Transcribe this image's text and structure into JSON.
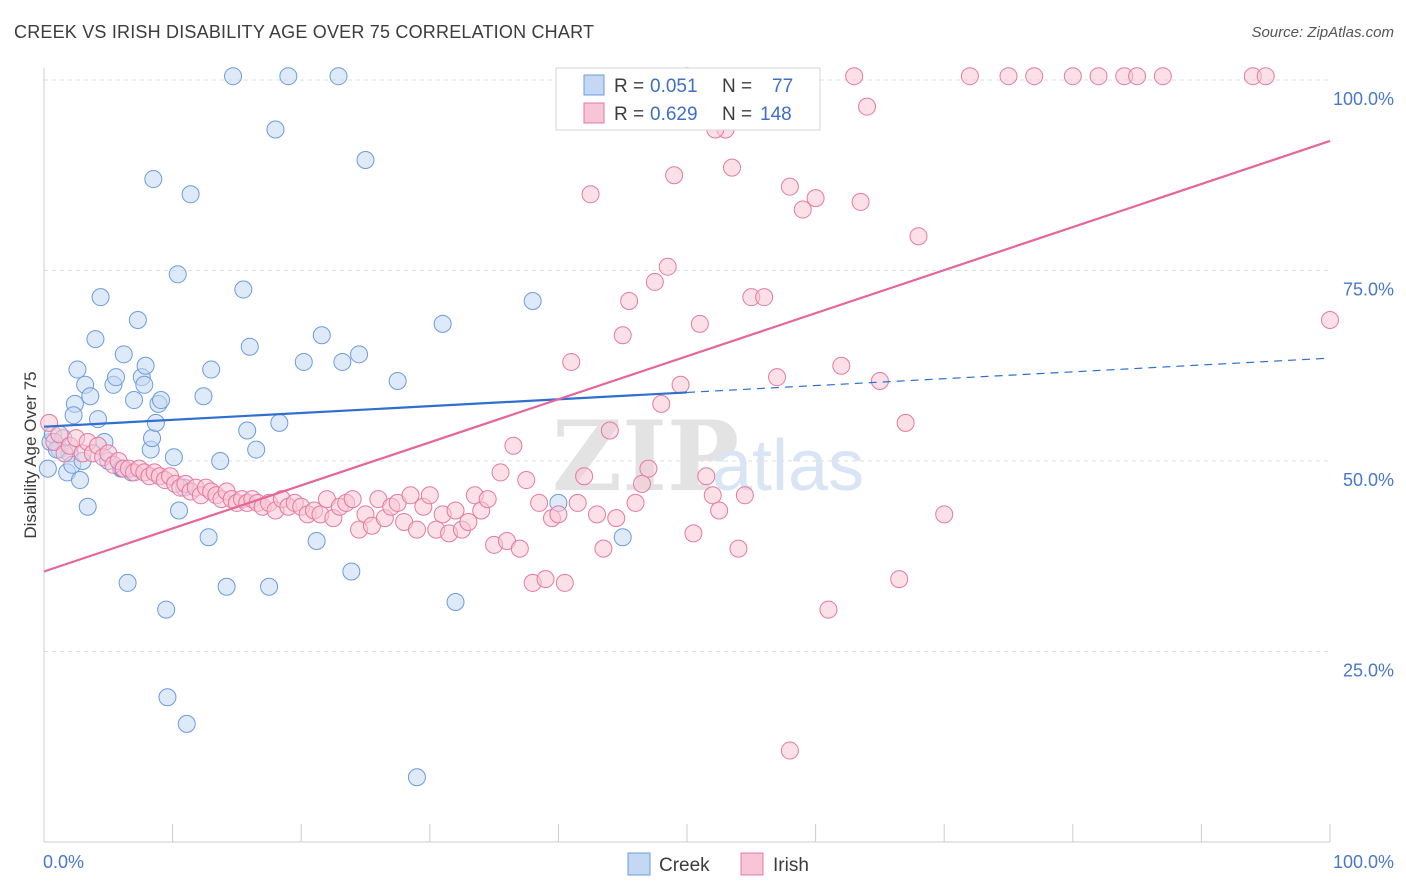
{
  "chart_data": {
    "type": "scatter",
    "title": "CREEK VS IRISH DISABILITY AGE OVER 75 CORRELATION CHART",
    "source": "Source: ZipAtlas.com",
    "xlabel": "",
    "ylabel": "Disability Age Over 75",
    "xlim": [
      0,
      100
    ],
    "ylim": [
      0,
      100
    ],
    "x_tick_labels": [
      "0.0%",
      "100.0%"
    ],
    "y_ticks": [
      25,
      50,
      75,
      100
    ],
    "y_tick_labels": [
      "25.0%",
      "50.0%",
      "75.0%",
      "100.0%"
    ],
    "watermark": [
      "ZIP",
      "atlas"
    ],
    "legend": {
      "entries": [
        {
          "series": "Creek",
          "r_label": "R =",
          "r_value": "0.051",
          "n_label": "N =",
          "n_value": "77"
        },
        {
          "series": "Irish",
          "r_label": "R =",
          "r_value": "0.629",
          "n_label": "N =",
          "n_value": "148"
        }
      ],
      "position": "top-center"
    },
    "bottom_legend": [
      "Creek",
      "Irish"
    ],
    "series": [
      {
        "name": "Creek",
        "color": "#6b9be0",
        "fill": "#c5d8f3",
        "trend": {
          "x0": 0,
          "y0": 54.5,
          "x1": 50,
          "y1": 59,
          "dash_to_x": 100,
          "dash_to_y": 63.5
        },
        "points": [
          [
            0.3,
            49
          ],
          [
            0.5,
            52.5
          ],
          [
            0.7,
            53.5
          ],
          [
            1.2,
            51.5
          ],
          [
            1.5,
            53
          ],
          [
            1.8,
            48.5
          ],
          [
            2.0,
            51
          ],
          [
            2.2,
            49.5
          ],
          [
            2.4,
            57.5
          ],
          [
            2.6,
            62
          ],
          [
            2.8,
            47.5
          ],
          [
            3.2,
            60
          ],
          [
            3.4,
            44
          ],
          [
            3.6,
            58.5
          ],
          [
            4.0,
            66
          ],
          [
            4.2,
            55.5
          ],
          [
            4.4,
            71.5
          ],
          [
            4.7,
            52.5
          ],
          [
            5.0,
            50
          ],
          [
            5.4,
            60
          ],
          [
            5.6,
            61
          ],
          [
            6.0,
            49
          ],
          [
            6.2,
            64
          ],
          [
            6.5,
            34
          ],
          [
            6.8,
            48.5
          ],
          [
            7.0,
            58
          ],
          [
            7.3,
            68.5
          ],
          [
            7.6,
            61
          ],
          [
            7.8,
            60
          ],
          [
            7.9,
            62.5
          ],
          [
            8.3,
            51.5
          ],
          [
            8.4,
            53
          ],
          [
            8.5,
            87
          ],
          [
            8.7,
            55
          ],
          [
            8.9,
            57.5
          ],
          [
            9.1,
            58
          ],
          [
            9.5,
            30.5
          ],
          [
            9.6,
            19
          ],
          [
            10.1,
            50.5
          ],
          [
            10.4,
            74.5
          ],
          [
            10.5,
            43.5
          ],
          [
            10.9,
            46.5
          ],
          [
            11.1,
            15.5
          ],
          [
            11.4,
            85
          ],
          [
            12.4,
            58.5
          ],
          [
            12.8,
            40
          ],
          [
            13.0,
            62
          ],
          [
            13.7,
            50
          ],
          [
            14.2,
            33.5
          ],
          [
            14.7,
            100.5
          ],
          [
            15.5,
            72.5
          ],
          [
            15.8,
            54
          ],
          [
            16.0,
            65
          ],
          [
            16.5,
            51.5
          ],
          [
            17.5,
            33.5
          ],
          [
            18.0,
            93.5
          ],
          [
            18.3,
            55
          ],
          [
            19.0,
            100.5
          ],
          [
            20.2,
            63
          ],
          [
            21.2,
            39.5
          ],
          [
            21.6,
            66.5
          ],
          [
            22.9,
            100.5
          ],
          [
            23.2,
            63
          ],
          [
            23.9,
            35.5
          ],
          [
            24.5,
            64
          ],
          [
            25.0,
            89.5
          ],
          [
            27.5,
            60.5
          ],
          [
            29.0,
            8.5
          ],
          [
            31.0,
            68
          ],
          [
            32.0,
            31.5
          ],
          [
            38.0,
            71
          ],
          [
            40.0,
            44.5
          ],
          [
            45.0,
            40
          ],
          [
            1.0,
            51.5
          ],
          [
            2.3,
            56
          ],
          [
            6.1,
            49
          ],
          [
            3.0,
            50
          ]
        ]
      },
      {
        "name": "Irish",
        "color": "#e57aa0",
        "fill": "#f7c6d6",
        "trend": {
          "x0": 0,
          "y0": 35.5,
          "x1": 100,
          "y1": 92
        },
        "points": [
          [
            0.4,
            55
          ],
          [
            0.8,
            52.5
          ],
          [
            1.2,
            53.5
          ],
          [
            1.6,
            51
          ],
          [
            2.0,
            52
          ],
          [
            2.5,
            53
          ],
          [
            3.0,
            51
          ],
          [
            3.4,
            52.5
          ],
          [
            3.8,
            51
          ],
          [
            4.2,
            52
          ],
          [
            4.6,
            50.5
          ],
          [
            5.0,
            51
          ],
          [
            5.4,
            49.5
          ],
          [
            5.8,
            50
          ],
          [
            6.2,
            49
          ],
          [
            6.6,
            49
          ],
          [
            7.0,
            48.5
          ],
          [
            7.4,
            49
          ],
          [
            7.8,
            48.5
          ],
          [
            8.2,
            48
          ],
          [
            8.6,
            48.5
          ],
          [
            9.0,
            48
          ],
          [
            9.4,
            47.5
          ],
          [
            9.8,
            48
          ],
          [
            10.2,
            47
          ],
          [
            10.6,
            46.5
          ],
          [
            11.0,
            47
          ],
          [
            11.4,
            46
          ],
          [
            11.8,
            46.5
          ],
          [
            12.2,
            45.5
          ],
          [
            12.6,
            46.5
          ],
          [
            13.0,
            46
          ],
          [
            13.4,
            45.5
          ],
          [
            13.8,
            45
          ],
          [
            14.2,
            46
          ],
          [
            14.6,
            45
          ],
          [
            15.0,
            44.5
          ],
          [
            15.4,
            45
          ],
          [
            15.8,
            44.5
          ],
          [
            16.2,
            45
          ],
          [
            16.6,
            44.5
          ],
          [
            17.0,
            44
          ],
          [
            17.5,
            44.5
          ],
          [
            18.0,
            43.5
          ],
          [
            18.5,
            45
          ],
          [
            19.0,
            44
          ],
          [
            19.5,
            44.5
          ],
          [
            20.0,
            44
          ],
          [
            20.5,
            43
          ],
          [
            21.0,
            43.5
          ],
          [
            21.5,
            43
          ],
          [
            22.0,
            45
          ],
          [
            22.5,
            42.5
          ],
          [
            23.0,
            44
          ],
          [
            23.5,
            44.5
          ],
          [
            24.0,
            45
          ],
          [
            24.5,
            41
          ],
          [
            25.0,
            43
          ],
          [
            25.5,
            41.5
          ],
          [
            26.0,
            45
          ],
          [
            26.5,
            42.5
          ],
          [
            27.0,
            44
          ],
          [
            27.5,
            44.5
          ],
          [
            28.0,
            42
          ],
          [
            28.5,
            45.5
          ],
          [
            29.0,
            41
          ],
          [
            29.5,
            44
          ],
          [
            30.0,
            45.5
          ],
          [
            30.5,
            41
          ],
          [
            31.0,
            43
          ],
          [
            31.5,
            40.5
          ],
          [
            32.0,
            43.5
          ],
          [
            32.5,
            41
          ],
          [
            33.0,
            42
          ],
          [
            33.5,
            45.5
          ],
          [
            34.0,
            43.5
          ],
          [
            34.5,
            45
          ],
          [
            35.0,
            39
          ],
          [
            35.5,
            48.5
          ],
          [
            36.0,
            39.5
          ],
          [
            36.5,
            52
          ],
          [
            37.0,
            38.5
          ],
          [
            37.5,
            47.5
          ],
          [
            38.0,
            34
          ],
          [
            38.5,
            44.5
          ],
          [
            39.0,
            34.5
          ],
          [
            39.5,
            42.5
          ],
          [
            40.0,
            43
          ],
          [
            40.5,
            34
          ],
          [
            41.0,
            63
          ],
          [
            41.5,
            44.5
          ],
          [
            42.0,
            48
          ],
          [
            42.5,
            85
          ],
          [
            43.0,
            43
          ],
          [
            43.5,
            38.5
          ],
          [
            44.0,
            54
          ],
          [
            44.5,
            42.5
          ],
          [
            45.0,
            66.5
          ],
          [
            45.5,
            71
          ],
          [
            46.0,
            44.5
          ],
          [
            46.5,
            47
          ],
          [
            47.0,
            49
          ],
          [
            47.5,
            73.5
          ],
          [
            48.0,
            57.5
          ],
          [
            48.5,
            75.5
          ],
          [
            49.0,
            87.5
          ],
          [
            49.5,
            60
          ],
          [
            50.0,
            100.5
          ],
          [
            50.5,
            40.5
          ],
          [
            51.0,
            68
          ],
          [
            51.5,
            48
          ],
          [
            52.0,
            45.5
          ],
          [
            52.5,
            43.5
          ],
          [
            53.0,
            93.5
          ],
          [
            53.5,
            88.5
          ],
          [
            54.0,
            38.5
          ],
          [
            54.5,
            45.5
          ],
          [
            55.0,
            71.5
          ],
          [
            56.0,
            71.5
          ],
          [
            57.0,
            61
          ],
          [
            58.0,
            86
          ],
          [
            59.0,
            83
          ],
          [
            60.0,
            84.5
          ],
          [
            61.0,
            30.5
          ],
          [
            62.0,
            62.5
          ],
          [
            63.0,
            100.5
          ],
          [
            64.0,
            96.5
          ],
          [
            65.0,
            60.5
          ],
          [
            67.0,
            55
          ],
          [
            68.0,
            79.5
          ],
          [
            70.0,
            43
          ],
          [
            72.0,
            100.5
          ],
          [
            75.0,
            100.5
          ],
          [
            77.0,
            100.5
          ],
          [
            80.0,
            100.5
          ],
          [
            82.0,
            100.5
          ],
          [
            84.0,
            100.5
          ],
          [
            85.0,
            100.5
          ],
          [
            87.0,
            100.5
          ],
          [
            94.0,
            100.5
          ],
          [
            95.0,
            100.5
          ],
          [
            100.0,
            68.5
          ],
          [
            63.5,
            84
          ],
          [
            58.0,
            12
          ],
          [
            66.5,
            34.5
          ],
          [
            52.2,
            93.5
          ]
        ]
      }
    ]
  }
}
